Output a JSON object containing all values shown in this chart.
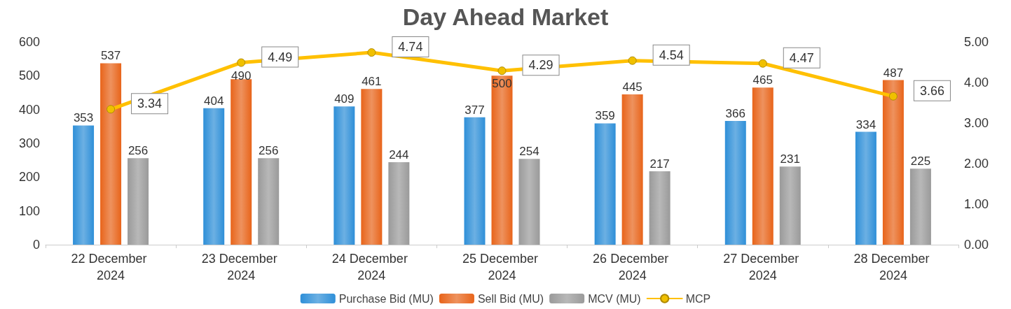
{
  "chart_data": {
    "type": "bar",
    "title": "Day Ahead Market",
    "categories": [
      "22 December 2024",
      "23 December 2024",
      "24 December 2024",
      "25 December 2024",
      "26 December 2024",
      "27 December 2024",
      "28 December 2024"
    ],
    "series": [
      {
        "name": "Purchase Bid (MU)",
        "color": "#2e8fd8",
        "values": [
          353,
          404,
          409,
          377,
          359,
          366,
          334
        ]
      },
      {
        "name": "Sell Bid (MU)",
        "color": "#e8641a",
        "values": [
          537,
          490,
          461,
          500,
          445,
          465,
          487
        ]
      },
      {
        "name": "MCV (MU)",
        "color": "#9a9a9a",
        "values": [
          256,
          256,
          244,
          254,
          217,
          231,
          225
        ]
      },
      {
        "name": "MCP",
        "type": "line",
        "axis": "y2",
        "color": "#ffc000",
        "marker": "circle",
        "values": [
          3.34,
          4.49,
          4.74,
          4.29,
          4.54,
          4.47,
          3.66
        ]
      }
    ],
    "ylim": [
      0,
      600
    ],
    "yticks": [
      0,
      100,
      200,
      300,
      400,
      500,
      600
    ],
    "y2lim": [
      0,
      5
    ],
    "y2ticks": [
      {
        "value": 0,
        "label": "0.00"
      },
      {
        "value": 1,
        "label": "1.00"
      },
      {
        "value": 2,
        "label": "2.00"
      },
      {
        "value": 3,
        "label": "3.00"
      },
      {
        "value": 4,
        "label": "4.00"
      },
      {
        "value": 5,
        "label": "5.00"
      }
    ],
    "data_labels": true,
    "legend": "bottom"
  }
}
